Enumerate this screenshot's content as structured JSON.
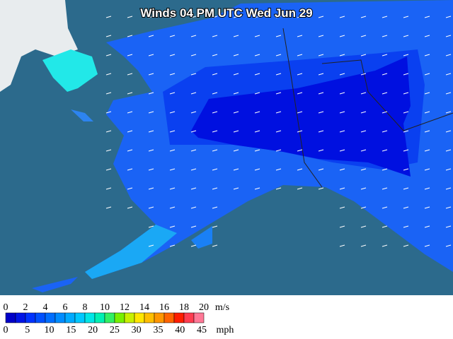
{
  "title": "Winds 04 PM UTC Wed Jun 29",
  "legend": {
    "ms_labels": [
      0,
      2,
      4,
      6,
      8,
      10,
      12,
      14,
      16,
      18,
      20
    ],
    "ms_unit": "m/s",
    "mph_labels": [
      0,
      5,
      10,
      15,
      20,
      25,
      30,
      35,
      40,
      45
    ],
    "mph_unit": "mph",
    "colors": [
      "#0000c8",
      "#0014e6",
      "#0032ff",
      "#0050ff",
      "#006eff",
      "#008cff",
      "#00aaff",
      "#00c8ff",
      "#00e6e6",
      "#00f0b4",
      "#32f064",
      "#78f000",
      "#c8f000",
      "#ffe600",
      "#ffbe00",
      "#ff9600",
      "#ff6400",
      "#ff1e00",
      "#ff3c50",
      "#ff7896"
    ]
  }
}
